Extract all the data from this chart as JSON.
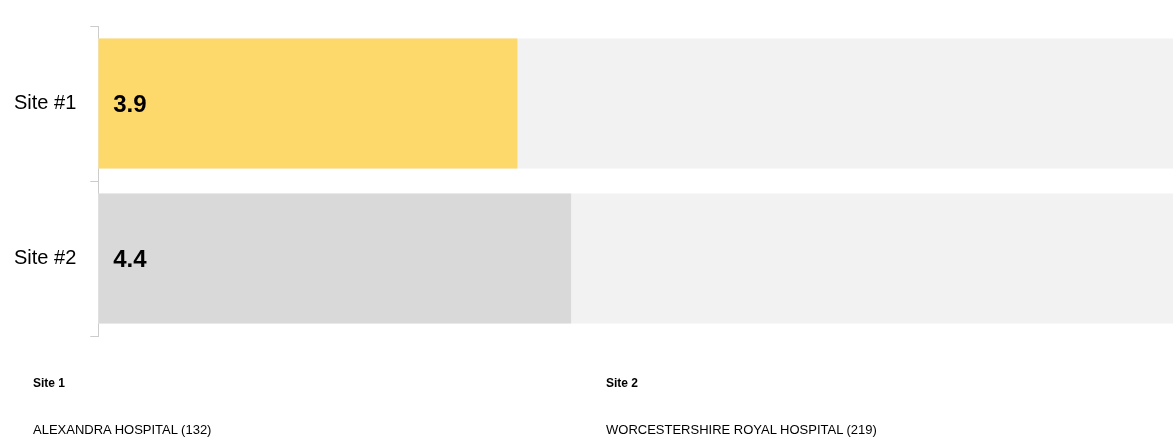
{
  "chart_data": {
    "type": "bar",
    "orientation": "horizontal",
    "categories": [
      "Site #1",
      "Site #2"
    ],
    "values": [
      3.9,
      4.4
    ],
    "colors": [
      "#fdd86b",
      "#d9d9d9"
    ],
    "xlim": [
      0,
      10
    ],
    "data_labels": true,
    "grid": false,
    "legend": false,
    "tick_labels": "y",
    "annotations": [
      "Site 1",
      "ALEXANDRA HOSPITAL (132)",
      "Site 2",
      "WORCESTERSHIRE ROYAL HOSPITAL (219)"
    ]
  }
}
